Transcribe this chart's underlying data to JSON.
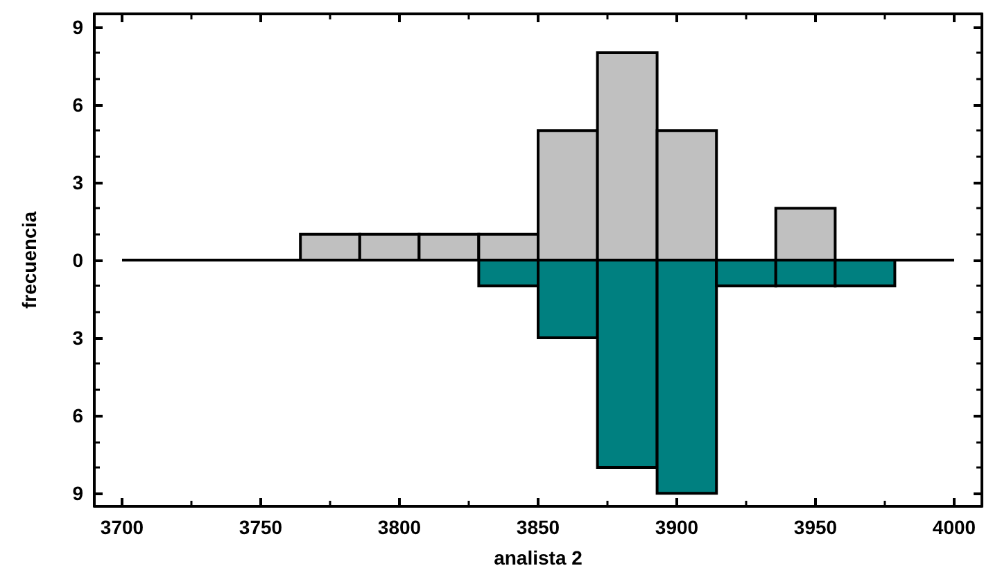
{
  "chart_data": {
    "type": "histogram",
    "xlabel": "analista 2",
    "ylabel": "frecuencia",
    "bins": [
      3700,
      3721.4,
      3742.9,
      3764.3,
      3785.7,
      3807.1,
      3828.6,
      3850,
      3871.4,
      3892.9,
      3914.3,
      3935.7,
      3957.1,
      3978.6,
      4000
    ],
    "series": [
      {
        "color": "#c0c0c0",
        "values": [
          0,
          0,
          0,
          1,
          1,
          1,
          1,
          5,
          8,
          5,
          0,
          2,
          0,
          0
        ]
      },
      {
        "color": "#008080",
        "values": [
          0,
          0,
          0,
          0,
          0,
          0,
          -1,
          -3,
          -8,
          -9,
          -1,
          -1,
          -1,
          0
        ]
      }
    ],
    "xlim": [
      3690,
      4010
    ],
    "xticks": [
      3700,
      3750,
      3800,
      3850,
      3900,
      3950,
      4000
    ],
    "ylim": [
      -9.5,
      9.5
    ],
    "yticks": [
      {
        "value": -9,
        "label": "9"
      },
      {
        "value": -6,
        "label": "6"
      },
      {
        "value": -3,
        "label": "3"
      },
      0,
      3,
      6,
      9
    ]
  }
}
